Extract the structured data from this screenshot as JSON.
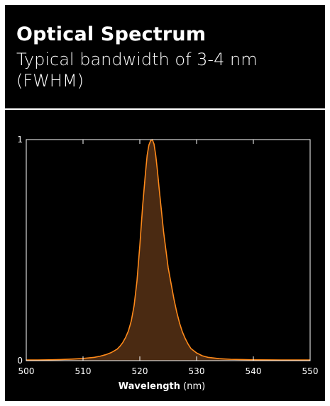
{
  "header": {
    "title": "Optical Spectrum",
    "subtitle": "Typical bandwidth of 3-4 nm (FWHM)"
  },
  "colors": {
    "background": "#000000",
    "text": "#ffffff",
    "line": "#ff8a1a",
    "fill": "#4a2a12"
  },
  "chart_data": {
    "type": "area",
    "title": "",
    "xlabel_bold": "Wavelength",
    "xlabel_unit": "(nm)",
    "ylabel": "",
    "xlim": [
      500,
      550
    ],
    "ylim": [
      0,
      1
    ],
    "xticks": [
      500,
      510,
      520,
      530,
      540,
      550
    ],
    "yticks": [
      0,
      1
    ],
    "grid": false,
    "series": [
      {
        "x": [
          500,
          502,
          504,
          506,
          508,
          510,
          512,
          513,
          514,
          515,
          516,
          516.5,
          517,
          517.5,
          518,
          518.5,
          519,
          519.5,
          520,
          520.5,
          521,
          521.3,
          521.6,
          521.9,
          522.2,
          522.5,
          522.8,
          523.1,
          523.4,
          523.8,
          524.2,
          524.6,
          525,
          525.5,
          526,
          526.5,
          527,
          527.5,
          528,
          528.5,
          529,
          530,
          531,
          532,
          534,
          536,
          538,
          540,
          545,
          550
        ],
        "y": [
          0.003,
          0.003,
          0.004,
          0.005,
          0.007,
          0.01,
          0.015,
          0.02,
          0.027,
          0.037,
          0.052,
          0.065,
          0.082,
          0.105,
          0.135,
          0.18,
          0.25,
          0.36,
          0.52,
          0.7,
          0.85,
          0.93,
          0.975,
          0.995,
          1.0,
          0.98,
          0.93,
          0.86,
          0.78,
          0.68,
          0.58,
          0.5,
          0.42,
          0.35,
          0.28,
          0.22,
          0.17,
          0.13,
          0.1,
          0.075,
          0.055,
          0.035,
          0.022,
          0.015,
          0.009,
          0.006,
          0.005,
          0.004,
          0.003,
          0.003
        ]
      }
    ]
  }
}
